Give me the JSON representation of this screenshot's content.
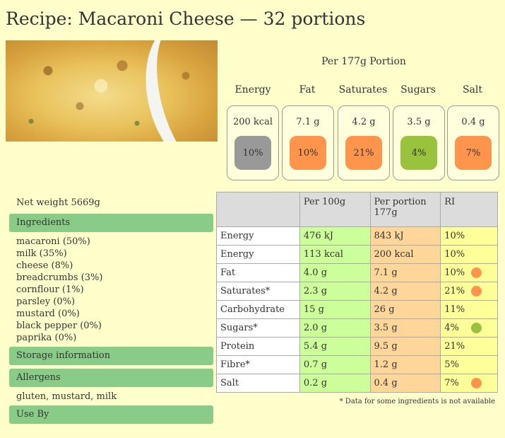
{
  "title": "Recipe: Macaroni Cheese — 32 portions",
  "portion_heading": "Per 177g Portion",
  "nutrients": [
    {
      "label": "Energy",
      "amount": "200 kcal",
      "ri": "10%",
      "color": "#999999"
    },
    {
      "label": "Fat",
      "amount": "7.1 g",
      "ri": "10%",
      "color": "#ff944d"
    },
    {
      "label": "Saturates",
      "amount": "4.2 g",
      "ri": "21%",
      "color": "#ff944d"
    },
    {
      "label": "Sugars",
      "amount": "3.5 g",
      "ri": "4%",
      "color": "#99c23d"
    },
    {
      "label": "Salt",
      "amount": "0.4 g",
      "ri": "7%",
      "color": "#ff944d"
    }
  ],
  "net_weight": "Net weight 5669g",
  "sections": {
    "ingredients": "Ingredients",
    "storage": "Storage information",
    "allergens": "Allergens",
    "use_by": "Use By"
  },
  "ingredients": [
    "macaroni (50%)",
    "milk (35%)",
    "cheese (8%)",
    "breadcrumbs (3%)",
    "cornflour (1%)",
    "parsley (0%)",
    "mustard (0%)",
    "black pepper (0%)",
    "paprika (0%)"
  ],
  "allergens_text": "gluten, mustard, milk",
  "table": {
    "headers": [
      "",
      "Per 100g",
      "Per portion 177g",
      "RI"
    ],
    "rows": [
      {
        "name": "Energy",
        "per100": "476 kJ",
        "portion": "843 kJ",
        "ri": "10%",
        "dot": ""
      },
      {
        "name": "Energy",
        "per100": "113 kcal",
        "portion": "200 kcal",
        "ri": "10%",
        "dot": ""
      },
      {
        "name": "Fat",
        "per100": "4.0 g",
        "portion": "7.1 g",
        "ri": "10%",
        "dot": "#ff944d"
      },
      {
        "name": "Saturates*",
        "per100": "2.3 g",
        "portion": "4.2 g",
        "ri": "21%",
        "dot": "#ff944d"
      },
      {
        "name": "Carbohydrate",
        "per100": "15 g",
        "portion": "26 g",
        "ri": "11%",
        "dot": ""
      },
      {
        "name": "Sugars*",
        "per100": "2.0 g",
        "portion": "3.5 g",
        "ri": "4%",
        "dot": "#99c23d"
      },
      {
        "name": "Protein",
        "per100": "5.4 g",
        "portion": "9.5 g",
        "ri": "21%",
        "dot": ""
      },
      {
        "name": "Fibre*",
        "per100": "0.7 g",
        "portion": "1.2 g",
        "ri": "5%",
        "dot": ""
      },
      {
        "name": "Salt",
        "per100": "0.2 g",
        "portion": "0.4 g",
        "ri": "7%",
        "dot": "#ff944d"
      }
    ]
  },
  "footnote": "* Data for some ingredients is not available"
}
